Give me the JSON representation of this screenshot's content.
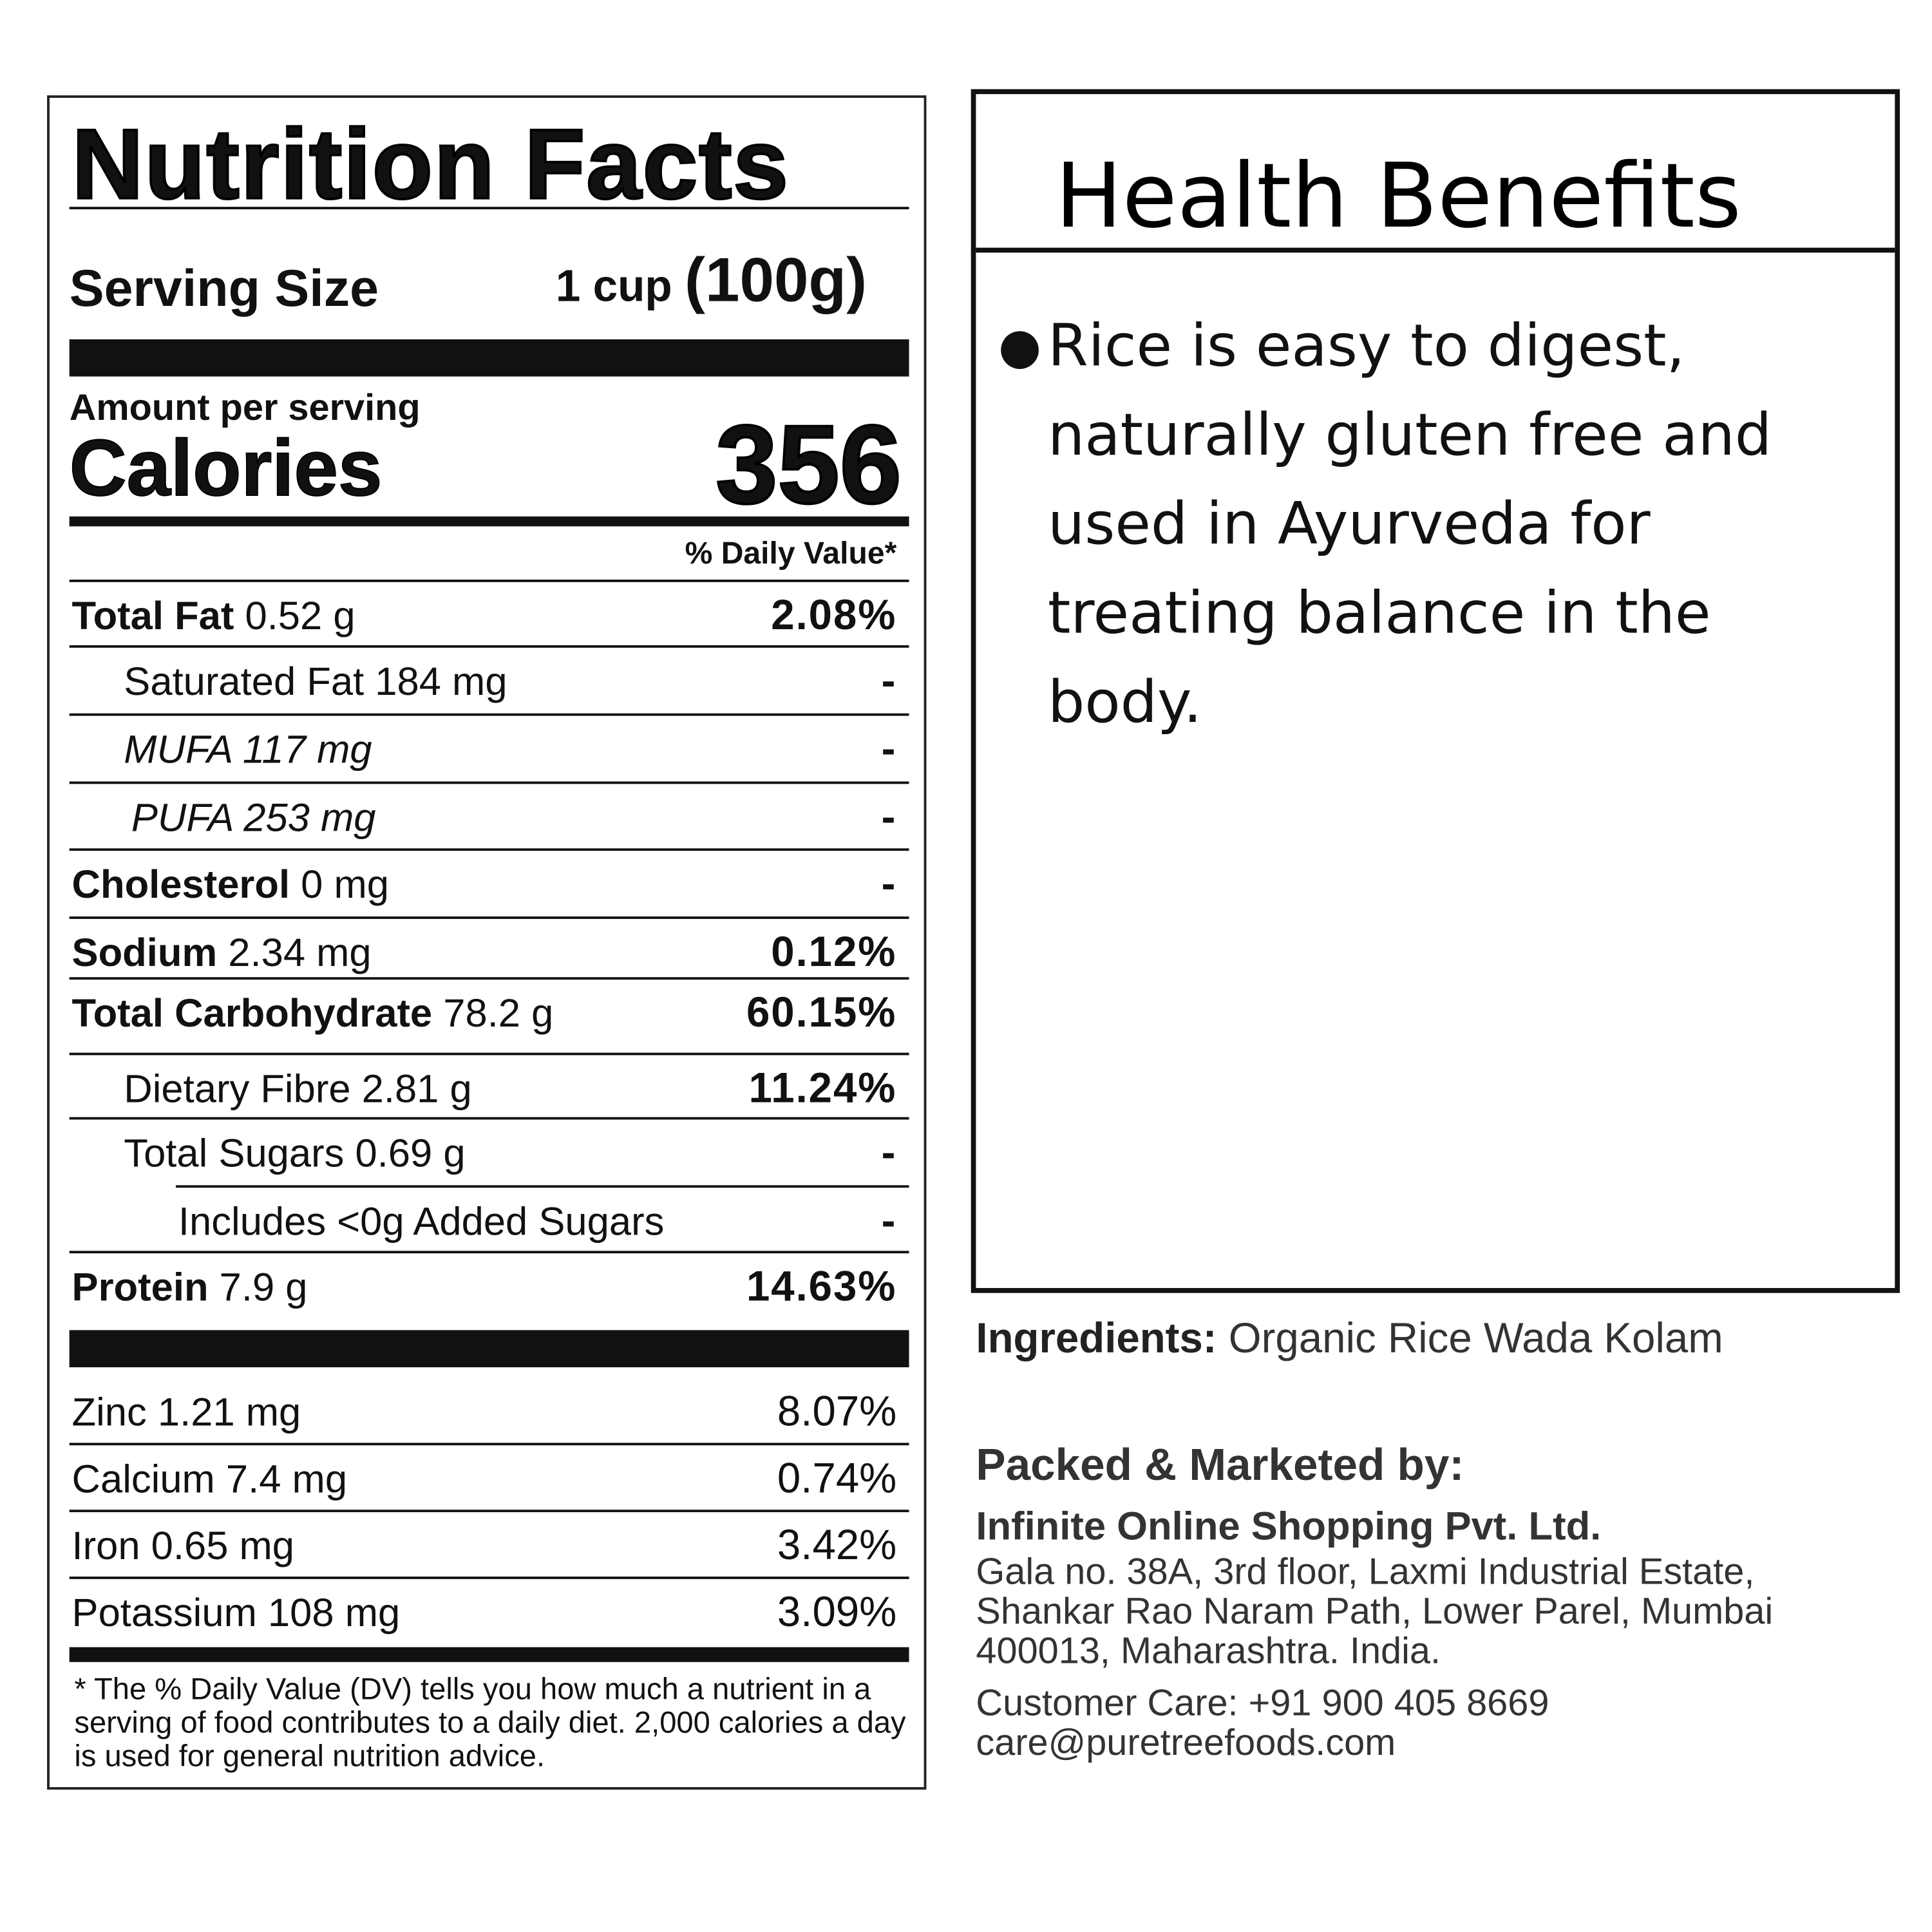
{
  "nutrition": {
    "title": "Nutrition Facts",
    "serving_label": "Serving Size",
    "serving_amount": "1 cup",
    "serving_weight": "(100g)",
    "amount_per_serving": "Amount per serving",
    "calories_label": "Calories",
    "calories_value": "356",
    "daily_value_header": "% Daily Value*",
    "rows": [
      {
        "bold": "Total Fat",
        "label": " 0.52 g",
        "dv": "2.08%"
      },
      {
        "bold": "",
        "label": "Saturated Fat 184 mg",
        "dv": "-"
      },
      {
        "bold": "",
        "label": "MUFA 117 mg",
        "dv": "-"
      },
      {
        "bold": "",
        "label": "PUFA  253 mg",
        "dv": "-"
      },
      {
        "bold": "Cholesterol",
        "label": " 0 mg",
        "dv": "-"
      },
      {
        "bold": "Sodium",
        "label": " 2.34 mg",
        "dv": "0.12%"
      },
      {
        "bold": "Total Carbohydrate",
        "label": " 78.2 g",
        "dv": "60.15%"
      },
      {
        "bold": "",
        "label": "Dietary Fibre 2.81 g",
        "dv": "11.24%"
      },
      {
        "bold": "",
        "label": "Total Sugars 0.69 g",
        "dv": "-"
      },
      {
        "bold": "",
        "label": "Includes <0g Added Sugars",
        "dv": "-"
      },
      {
        "bold": "Protein",
        "label": " 7.9 g",
        "dv": "14.63%"
      }
    ],
    "minerals": [
      {
        "label": "Zinc  1.21 mg",
        "dv": "8.07%"
      },
      {
        "label": "Calcium 7.4 mg",
        "dv": "0.74%"
      },
      {
        "label": "Iron 0.65 mg",
        "dv": "3.42%"
      },
      {
        "label": "Potassium 108 mg",
        "dv": "3.09%"
      }
    ],
    "footnote": "* The % Daily Value (DV) tells you how much a nutrient in a serving of food contributes to a daily diet. 2,000 calories a day is used for general nutrition advice."
  },
  "health": {
    "title": "Health Benefits",
    "items": [
      "Rice is easy to digest, naturally gluten free and used in Ayurveda for treating balance in the body."
    ]
  },
  "ingredients": {
    "label": "Ingredients:",
    "value": "Organic Rice Wada Kolam"
  },
  "packer": {
    "heading": "Packed & Marketed by:",
    "company": "Infinite Online Shopping Pvt. Ltd.",
    "address": "Gala no. 38A, 3rd floor, Laxmi Industrial Estate, Shankar Rao Naram Path, Lower Parel, Mumbai 400013, Maharashtra. India.",
    "customer_care": "Customer Care: +91 900 405 8669",
    "email": "care@puretreefoods.com"
  }
}
